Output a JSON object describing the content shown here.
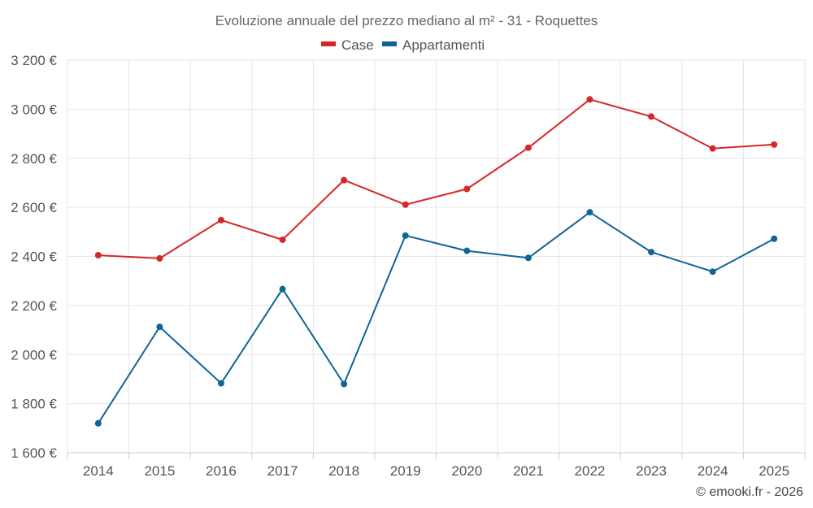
{
  "chart_data": {
    "type": "line",
    "title": "Evoluzione annuale del prezzo mediano al m² - 31 - Roquettes",
    "categories": [
      "2014",
      "2015",
      "2016",
      "2017",
      "2018",
      "2019",
      "2020",
      "2021",
      "2022",
      "2023",
      "2024",
      "2025"
    ],
    "series": [
      {
        "name": "Case",
        "color": "#d62728",
        "values": [
          2405,
          2392,
          2548,
          2468,
          2711,
          2611,
          2675,
          2843,
          3040,
          2970,
          2840,
          2856
        ]
      },
      {
        "name": "Appartamenti",
        "color": "#0e6596",
        "values": [
          1720,
          2113,
          1883,
          2267,
          1880,
          2485,
          2423,
          2394,
          2580,
          2418,
          2338,
          2472
        ]
      }
    ],
    "ylim": [
      1600,
      3200
    ],
    "yticks": [
      1600,
      1800,
      2000,
      2200,
      2400,
      2600,
      2800,
      3000,
      3200
    ],
    "ytick_labels": [
      "1 600 €",
      "1 800 €",
      "2 000 €",
      "2 200 €",
      "2 400 €",
      "2 600 €",
      "2 800 €",
      "3 000 €",
      "3 200 €"
    ],
    "xlabel": "",
    "ylabel": "",
    "grid": true,
    "legend_position": "top-center"
  },
  "credit": "© emooki.fr - 2026"
}
